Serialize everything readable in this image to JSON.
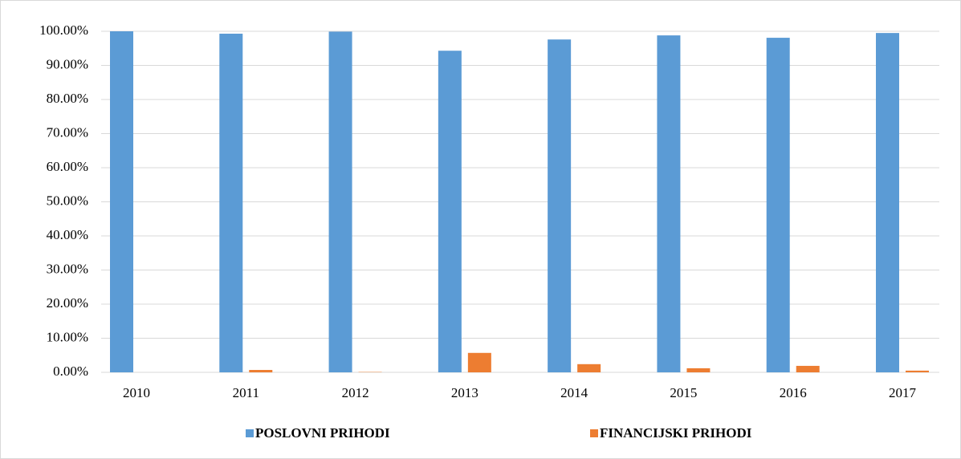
{
  "chart_data": {
    "type": "bar",
    "categories": [
      "2010",
      "2011",
      "2012",
      "2013",
      "2014",
      "2015",
      "2016",
      "2017"
    ],
    "series": [
      {
        "name": "POSLOVNI PRIHODI",
        "color": "#5b9bd5",
        "values": [
          100.0,
          99.3,
          99.9,
          94.3,
          97.6,
          98.8,
          98.1,
          99.5
        ]
      },
      {
        "name": "FINANCIJSKI PRIHODI",
        "color": "#ed7d31",
        "values": [
          0.0,
          0.7,
          0.1,
          5.7,
          2.4,
          1.2,
          1.9,
          0.5
        ]
      }
    ],
    "ylim": [
      0,
      100
    ],
    "yticks": [
      {
        "value": 0,
        "label": "0.00%"
      },
      {
        "value": 10,
        "label": "10.00%"
      },
      {
        "value": 20,
        "label": "20.00%"
      },
      {
        "value": 30,
        "label": "30.00%"
      },
      {
        "value": 40,
        "label": "40.00%"
      },
      {
        "value": 50,
        "label": "50.00%"
      },
      {
        "value": 60,
        "label": "60.00%"
      },
      {
        "value": 70,
        "label": "70.00%"
      },
      {
        "value": 80,
        "label": "80.00%"
      },
      {
        "value": 90,
        "label": "90.00%"
      },
      {
        "value": 100,
        "label": "100.00%"
      }
    ],
    "grid": true,
    "legend": "bottom"
  }
}
